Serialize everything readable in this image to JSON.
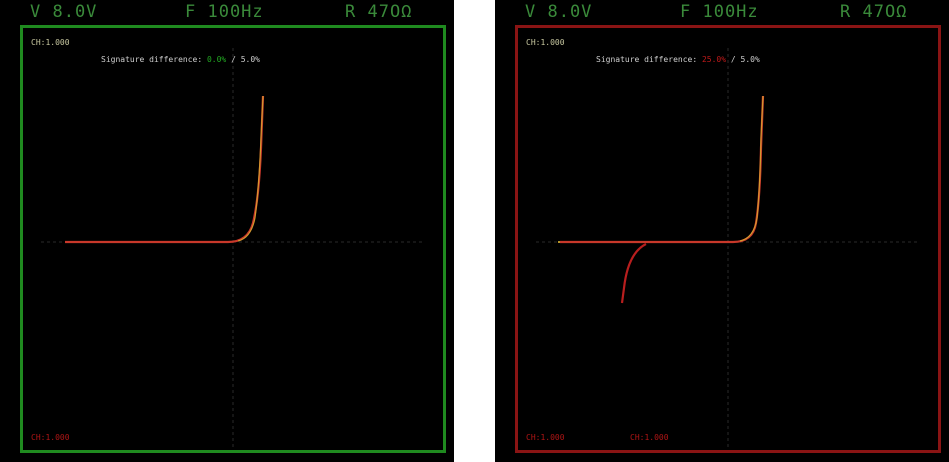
{
  "panels": [
    {
      "header": {
        "voltage": "V 8.0V",
        "frequency": "F 100Hz",
        "resistance": "R 47OΩ"
      },
      "ch1_label": "CH:1.000",
      "signature_label": "Signature difference:",
      "signature_value": "0.0%",
      "signature_limit": "/ 5.0%",
      "ch2_label": "CH:1.000",
      "status": "pass",
      "colors": {
        "frame": "#1f8a1f",
        "trace": "#c8382a",
        "trace_highlight": "#d8b030"
      }
    },
    {
      "header": {
        "voltage": "V 8.0V",
        "frequency": "F 100Hz",
        "resistance": "R 47OΩ"
      },
      "ch1_label": "CH:1.000",
      "signature_label": "Signature difference:",
      "signature_value": "25.0%",
      "signature_limit": "/ 5.0%",
      "ch2_label": "CH:1.000",
      "ch3_label": "CH:1.000",
      "status": "fail",
      "colors": {
        "frame": "#8a1414",
        "trace": "#c8382a",
        "trace_highlight": "#d8b030"
      }
    }
  ]
}
